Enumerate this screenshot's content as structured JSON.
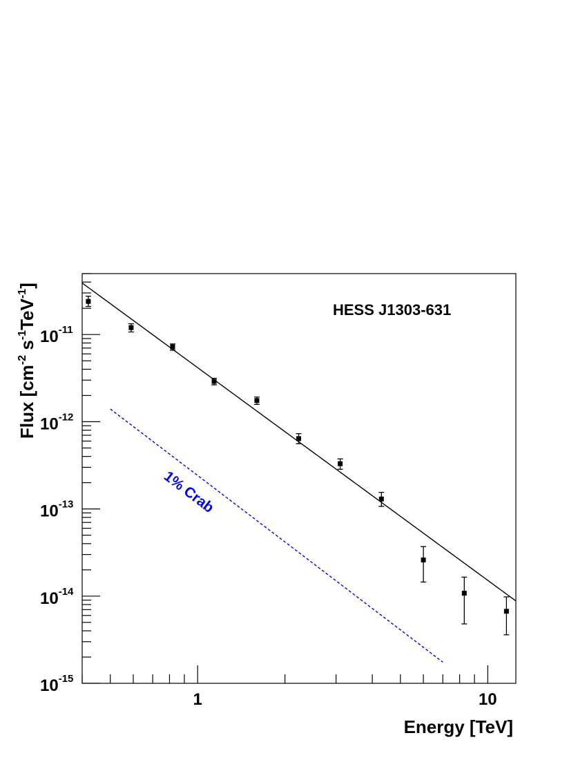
{
  "chart_data": {
    "type": "scatter",
    "title": "HESS J1303-631",
    "xlabel": "Energy [TeV]",
    "ylabel": {
      "base": "Flux [cm",
      "exp1": "-2",
      "mid1": " s",
      "exp2": "-1",
      "mid2": "TeV",
      "exp3": "-1",
      "end": "]"
    },
    "x_scale": "log",
    "y_scale": "log",
    "xlim": [
      0.4,
      12.5
    ],
    "ylim": [
      1e-15,
      5e-11
    ],
    "x_tick_labels": [
      {
        "value": 1,
        "label": "1"
      },
      {
        "value": 10,
        "label": "10"
      }
    ],
    "y_tick_labels": [
      {
        "value": 1e-11,
        "base": "10",
        "exp": "-11"
      },
      {
        "value": 1e-12,
        "base": "10",
        "exp": "-12"
      },
      {
        "value": 1e-13,
        "base": "10",
        "exp": "-13"
      },
      {
        "value": 1e-14,
        "base": "10",
        "exp": "-14"
      },
      {
        "value": 1e-15,
        "base": "10",
        "exp": "-15"
      }
    ],
    "points": [
      {
        "x": 0.42,
        "y": 2.4e-11,
        "y_low": 2.1e-11,
        "y_high": 2.75e-11
      },
      {
        "x": 0.59,
        "y": 1.2e-11,
        "y_low": 1.07e-11,
        "y_high": 1.33e-11
      },
      {
        "x": 0.82,
        "y": 7.2e-12,
        "y_low": 6.6e-12,
        "y_high": 7.8e-12
      },
      {
        "x": 1.14,
        "y": 2.9e-12,
        "y_low": 2.65e-12,
        "y_high": 3.15e-12
      },
      {
        "x": 1.6,
        "y": 1.75e-12,
        "y_low": 1.58e-12,
        "y_high": 1.92e-12
      },
      {
        "x": 2.23,
        "y": 6.4e-13,
        "y_low": 5.6e-13,
        "y_high": 7.3e-13
      },
      {
        "x": 3.1,
        "y": 3.3e-13,
        "y_low": 2.85e-13,
        "y_high": 3.75e-13
      },
      {
        "x": 4.3,
        "y": 1.3e-13,
        "y_low": 1.07e-13,
        "y_high": 1.55e-13
      },
      {
        "x": 6.0,
        "y": 2.6e-14,
        "y_low": 1.45e-14,
        "y_high": 3.7e-14
      },
      {
        "x": 8.3,
        "y": 1.08e-14,
        "y_low": 4.8e-15,
        "y_high": 1.65e-14
      },
      {
        "x": 11.6,
        "y": 6.7e-15,
        "y_low": 3.6e-15,
        "y_high": 9.8e-15
      }
    ],
    "fit_line": {
      "x": [
        0.4,
        12.5
      ],
      "y": [
        3.9e-11,
        8.8e-15
      ],
      "color": "#000000"
    },
    "reference_line": {
      "label": "1% Crab",
      "x": [
        0.5,
        7.0
      ],
      "y": [
        1.4e-12,
        1.75e-15
      ],
      "color": "#0000ee",
      "style": "dashed"
    },
    "grid": false,
    "legend": "none"
  }
}
